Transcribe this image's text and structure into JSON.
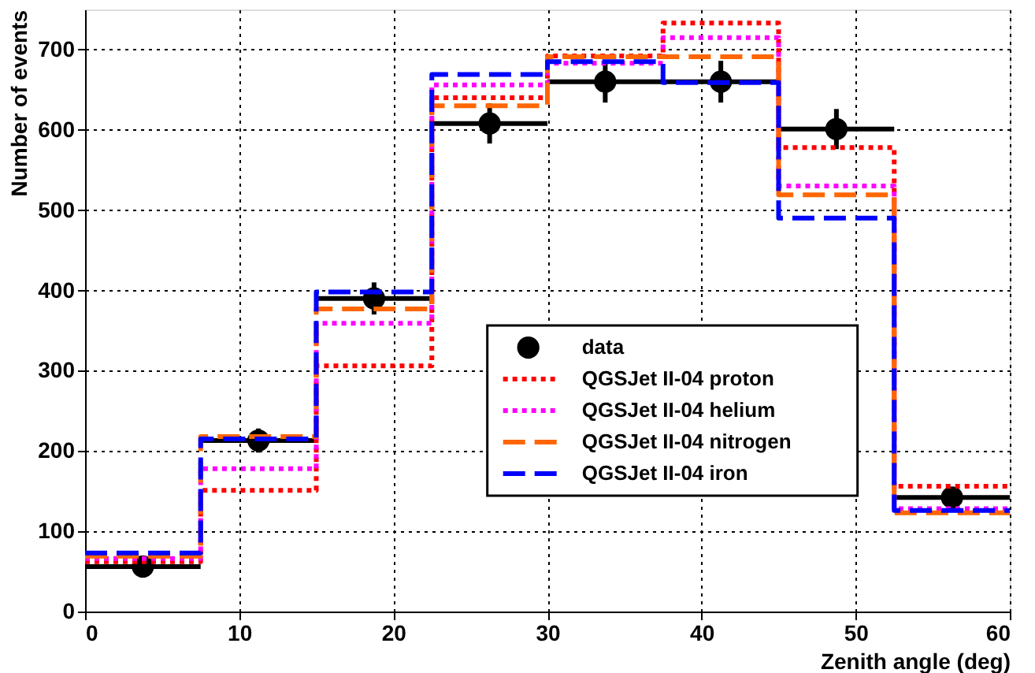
{
  "chart_data": {
    "type": "histogram",
    "xlabel": "Zenith angle (deg)",
    "ylabel": "Number of events",
    "bins": [
      0,
      7.5,
      15,
      22.5,
      30,
      37.5,
      45,
      52.5,
      60
    ],
    "series": [
      {
        "name": "data",
        "type": "scatter",
        "color": "#000000",
        "marker": "circle",
        "x": [
          3.75,
          11.25,
          18.75,
          26.25,
          33.75,
          41.25,
          48.75,
          56.25
        ],
        "values": [
          56,
          213,
          390,
          608,
          660,
          660,
          601,
          142
        ],
        "errors": [
          8,
          15,
          20,
          25,
          26,
          26,
          25,
          12
        ],
        "xerrors": [
          3.75,
          3.75,
          3.75,
          3.75,
          3.75,
          3.75,
          3.75,
          3.75
        ]
      },
      {
        "name": "QGSJet II-04 proton",
        "color": "#ff0000",
        "line_style": "dotted",
        "values": [
          62,
          151,
          306,
          640,
          692,
          733,
          578,
          156
        ]
      },
      {
        "name": "QGSJet II-04 helium",
        "color": "#ff00ff",
        "line_style": "dotted",
        "values": [
          66,
          178,
          359,
          656,
          683,
          715,
          530,
          128
        ]
      },
      {
        "name": "QGSJet II-04 nitrogen",
        "color": "#ff6600",
        "line_style": "dashed",
        "values": [
          69,
          218,
          377,
          630,
          691,
          691,
          519,
          123
        ]
      },
      {
        "name": "QGSJet II-04 iron",
        "color": "#0000ff",
        "line_style": "dashed",
        "values": [
          73,
          215,
          398,
          669,
          685,
          659,
          490,
          126
        ]
      }
    ],
    "xlim": [
      0,
      60
    ],
    "xticks": [
      0,
      10,
      20,
      30,
      40,
      50,
      60
    ],
    "ylim": [
      0,
      750
    ],
    "yticks": [
      0,
      100,
      200,
      300,
      400,
      500,
      600,
      700
    ],
    "grid": true,
    "legend": "right"
  }
}
